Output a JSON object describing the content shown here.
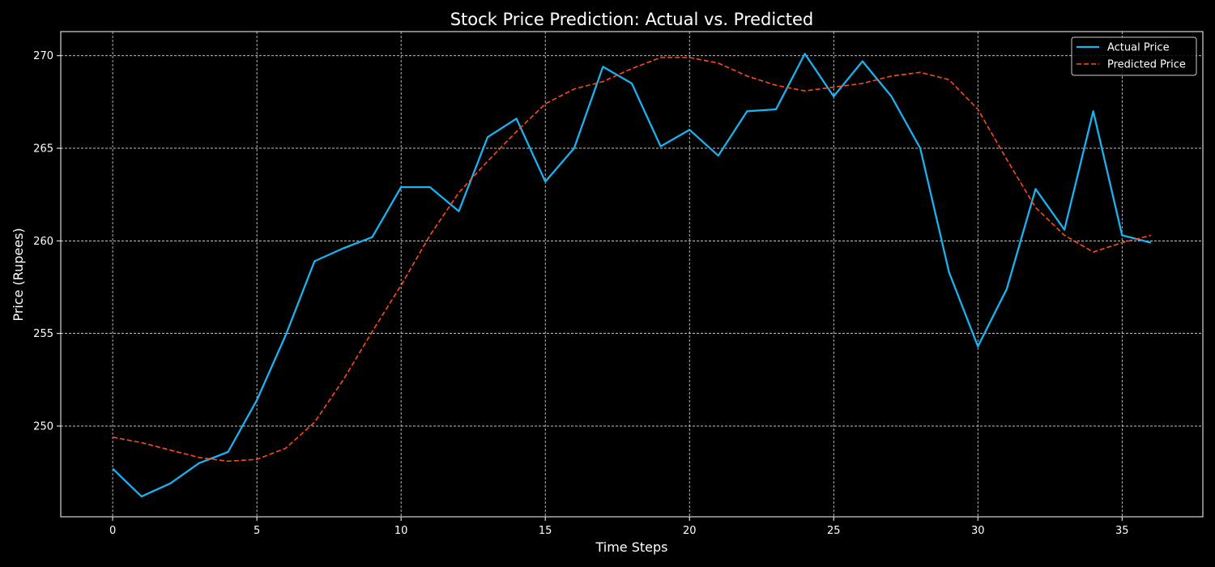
{
  "chart_data": {
    "type": "line",
    "title": "Stock Price Prediction: Actual vs. Predicted",
    "xlabel": "Time Steps",
    "ylabel": "Price (Rupees)",
    "xlim": [
      -1.8,
      37.8
    ],
    "ylim": [
      245.1,
      271.3
    ],
    "xticks": [
      0,
      5,
      10,
      15,
      20,
      25,
      30,
      35
    ],
    "yticks": [
      250,
      255,
      260,
      265,
      270
    ],
    "grid": true,
    "legend_position": "top-right",
    "background_color": "#000000",
    "x": [
      0,
      1,
      2,
      3,
      4,
      5,
      6,
      7,
      8,
      9,
      10,
      11,
      12,
      13,
      14,
      15,
      16,
      17,
      18,
      19,
      20,
      21,
      22,
      23,
      24,
      25,
      26,
      27,
      28,
      29,
      30,
      31,
      32,
      33,
      34,
      35,
      36
    ],
    "series": [
      {
        "name": "Actual Price",
        "color": "#1ab2f0",
        "style": "solid",
        "values": [
          247.7,
          246.2,
          246.9,
          248.0,
          248.6,
          251.4,
          254.9,
          258.9,
          259.6,
          260.2,
          262.9,
          262.9,
          261.6,
          265.6,
          266.6,
          263.2,
          265.0,
          269.4,
          268.5,
          265.1,
          266.0,
          264.6,
          267.0,
          267.1,
          270.1,
          267.8,
          269.7,
          267.8,
          265.0,
          258.3,
          254.3,
          257.4,
          262.8,
          260.6,
          267.0,
          260.3,
          259.9
        ]
      },
      {
        "name": "Predicted Price",
        "color": "#ff4a1c",
        "style": "dashed",
        "values": [
          249.4,
          249.1,
          248.7,
          248.3,
          248.1,
          248.2,
          248.8,
          250.2,
          252.5,
          255.1,
          257.6,
          260.3,
          262.6,
          264.3,
          265.9,
          267.4,
          268.2,
          268.6,
          269.3,
          269.9,
          269.9,
          269.6,
          268.9,
          268.4,
          268.1,
          268.3,
          268.5,
          268.9,
          269.1,
          268.7,
          267.1,
          264.4,
          261.8,
          260.3,
          259.4,
          259.9,
          260.3
        ]
      }
    ]
  }
}
